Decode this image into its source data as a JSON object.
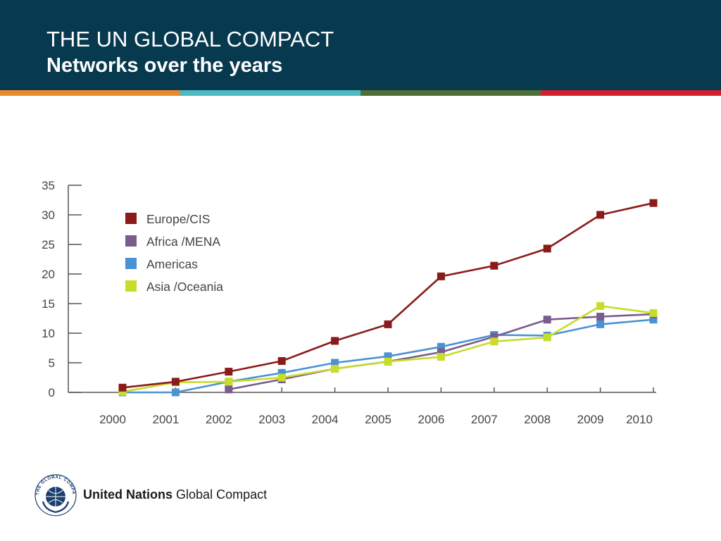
{
  "header": {
    "title": "THE UN GLOBAL COMPACT",
    "subtitle": "Networks over the years",
    "stripe_colors": [
      "#e88a2e",
      "#4db7c4",
      "#4f6f3a",
      "#d2202f"
    ]
  },
  "footer": {
    "brand_bold": "United Nations",
    "brand_light": "Global Compact",
    "logo_icon": "un-global-compact-emblem-icon",
    "logo_ring_text": "THE GLOBAL COMPACT"
  },
  "chart_data": {
    "type": "line",
    "x": [
      "2000",
      "2001",
      "2002",
      "2003",
      "2004",
      "2005",
      "2006",
      "2007",
      "2008",
      "2009",
      "2010"
    ],
    "ylim": [
      0,
      35
    ],
    "yticks": [
      0,
      5,
      10,
      15,
      20,
      25,
      30,
      35
    ],
    "grid": false,
    "legend_position": "top-left",
    "series": [
      {
        "name": "Europe/CIS",
        "color": "#8b1a1a",
        "values": [
          0.8,
          1.8,
          3.5,
          5.3,
          8.7,
          11.5,
          19.6,
          21.4,
          24.3,
          30.0,
          32.0
        ]
      },
      {
        "name": "Africa /MENA",
        "color": "#7a5c8e",
        "values": [
          null,
          null,
          0.5,
          2.2,
          4.0,
          5.2,
          6.8,
          9.4,
          12.3,
          12.8,
          13.2
        ]
      },
      {
        "name": "Americas",
        "color": "#4a92d4",
        "values": [
          0.0,
          0.0,
          1.8,
          3.3,
          5.0,
          6.1,
          7.7,
          9.7,
          9.6,
          11.5,
          12.3
        ]
      },
      {
        "name": "Asia /Oceania",
        "color": "#c8dc2a",
        "values": [
          0.1,
          1.7,
          1.8,
          2.5,
          4.0,
          5.2,
          6.0,
          8.6,
          9.3,
          14.6,
          13.4
        ]
      }
    ]
  }
}
